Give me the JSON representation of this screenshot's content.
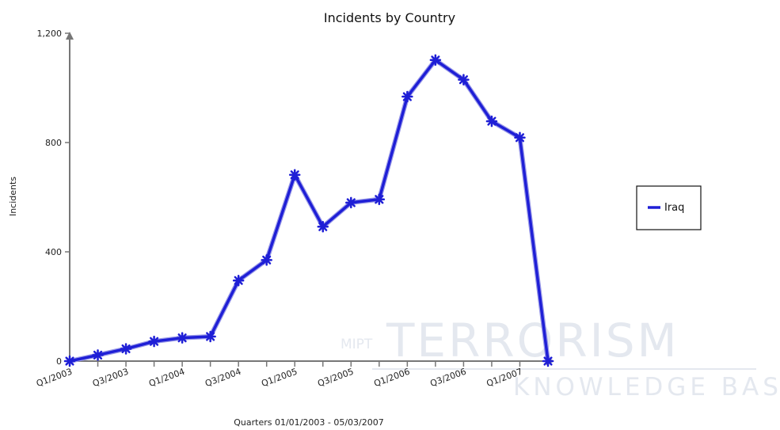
{
  "chart_data": {
    "type": "line",
    "title": "Incidents by Country",
    "xlabel": "Quarters 01/01/2003 - 05/03/2007",
    "ylabel": "Incidents",
    "ylim": [
      0,
      1200
    ],
    "y_ticks": [
      0,
      400,
      800,
      1200
    ],
    "y_tick_labels": [
      "0",
      "400",
      "800",
      "1,200"
    ],
    "categories": [
      "Q1/2003",
      "Q2/2003",
      "Q3/2003",
      "Q4/2003",
      "Q1/2004",
      "Q2/2004",
      "Q3/2004",
      "Q4/2004",
      "Q1/2005",
      "Q2/2005",
      "Q3/2005",
      "Q4/2005",
      "Q1/2006",
      "Q2/2006",
      "Q3/2006",
      "Q4/2006",
      "Q1/2007",
      "Q2/2007"
    ],
    "x_tick_labels": [
      "Q1/2003",
      "",
      "Q3/2003",
      "",
      "Q1/2004",
      "",
      "Q3/2004",
      "",
      "Q1/2005",
      "",
      "Q3/2005",
      "",
      "Q1/2006",
      "",
      "Q3/2006",
      "",
      "Q1/2007",
      ""
    ],
    "series": [
      {
        "name": "Iraq",
        "color": "#1f1fd6",
        "values": [
          0,
          22,
          45,
          72,
          85,
          90,
          295,
          370,
          682,
          492,
          580,
          592,
          968,
          1102,
          1030,
          878,
          818,
          0
        ]
      }
    ],
    "legend_position": "right",
    "grid": false
  },
  "watermark": {
    "line1": "TERRORISM",
    "line2": "KNOWLEDGE BASE",
    "prefix": "MIPT"
  }
}
